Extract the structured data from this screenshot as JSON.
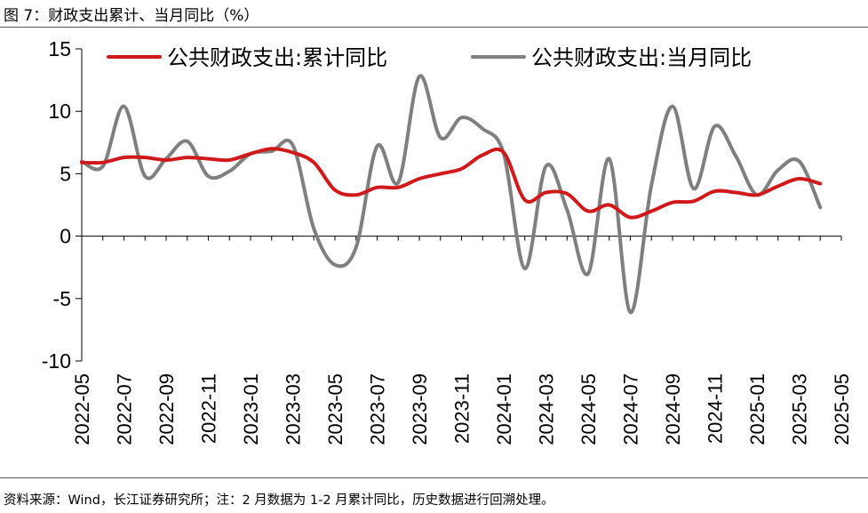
{
  "figure": {
    "title": "图 7：财政支出累计、当月同比（%）",
    "source": "资料来源：Wind，长江证券研究所；注：2 月数据为 1-2 月累计同比，历史数据进行回溯处理。"
  },
  "chart_data": {
    "type": "line",
    "title": "",
    "xlabel": "",
    "ylabel": "",
    "ylim": [
      -10,
      15
    ],
    "yticks": [
      -10,
      -5,
      0,
      5,
      10,
      15
    ],
    "grid": false,
    "legend_position": "top",
    "x": [
      "2022-05",
      "2022-06",
      "2022-07",
      "2022-08",
      "2022-09",
      "2022-10",
      "2022-11",
      "2022-12",
      "2023-01",
      "2023-02",
      "2023-03",
      "2023-04",
      "2023-05",
      "2023-06",
      "2023-07",
      "2023-08",
      "2023-09",
      "2023-10",
      "2023-11",
      "2023-12",
      "2024-01",
      "2024-02",
      "2024-03",
      "2024-04",
      "2024-05",
      "2024-06",
      "2024-07",
      "2024-08",
      "2024-09",
      "2024-10",
      "2024-11",
      "2024-12",
      "2025-01",
      "2025-02",
      "2025-03",
      "2025-04",
      "2025-05"
    ],
    "xtick_labels": [
      "2022-05",
      "2022-07",
      "2022-09",
      "2022-11",
      "2023-01",
      "2023-03",
      "2023-05",
      "2023-07",
      "2023-09",
      "2023-11",
      "2024-01",
      "2024-03",
      "2024-05",
      "2024-07",
      "2024-09",
      "2024-11",
      "2025-01",
      "2025-03",
      "2025-05"
    ],
    "series": [
      {
        "name": "公共财政支出:累计同比",
        "color": "#d0191b",
        "values": [
          5.9,
          5.9,
          6.3,
          6.3,
          6.1,
          6.3,
          6.2,
          6.1,
          6.6,
          7.0,
          6.7,
          5.9,
          3.7,
          3.3,
          3.9,
          3.9,
          4.6,
          5.0,
          5.4,
          6.5,
          6.7,
          2.9,
          3.5,
          3.4,
          2.0,
          2.5,
          1.5,
          2.0,
          2.7,
          2.8,
          3.6,
          3.5,
          3.3,
          4.0,
          4.6,
          4.2,
          null
        ],
        "display": [
          5.9,
          5.9,
          6.3,
          6.3,
          6.1,
          6.3,
          6.2,
          6.1,
          6.6,
          7.0,
          6.7,
          5.9,
          3.7,
          3.3,
          3.9,
          3.9,
          4.6,
          5.0,
          5.4,
          6.5,
          6.7,
          2.9,
          3.5,
          3.4,
          2.0,
          2.5,
          1.5,
          2.0,
          2.7,
          2.8,
          3.6,
          3.5,
          3.3,
          4.0,
          4.6,
          4.2
        ]
      },
      {
        "name": "公共财政支出:当月同比",
        "color": "#7f7f7f",
        "values": [
          6.0,
          5.6,
          10.4,
          4.8,
          6.2,
          7.6,
          4.8,
          5.2,
          6.6,
          6.8,
          7.3,
          0.6,
          -2.3,
          -0.9,
          7.2,
          4.3,
          12.8,
          7.9,
          9.5,
          8.6,
          6.6,
          -2.6,
          5.6,
          2.1,
          -3.0,
          6.2,
          -6.1,
          4.1,
          10.4,
          3.8,
          8.8,
          6.4,
          3.3,
          5.3,
          6.0,
          2.3,
          null
        ],
        "display": [
          6.0,
          5.6,
          10.4,
          4.8,
          6.2,
          7.6,
          4.8,
          5.2,
          6.6,
          6.8,
          7.3,
          0.6,
          -2.3,
          -0.9,
          7.2,
          4.3,
          12.8,
          7.9,
          9.5,
          8.6,
          6.6,
          -2.6,
          5.6,
          2.1,
          -3.0,
          6.2,
          -6.1,
          4.1,
          10.4,
          3.8,
          8.8,
          6.4,
          3.3,
          5.3,
          6.0,
          2.3
        ]
      }
    ]
  }
}
